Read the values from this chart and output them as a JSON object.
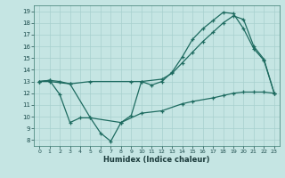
{
  "xlabel": "Humidex (Indice chaleur)",
  "bg_color": "#c5e5e3",
  "grid_color": "#a8d0ce",
  "line_color": "#1e6b60",
  "xlim": [
    -0.5,
    23.5
  ],
  "ylim": [
    7.5,
    19.5
  ],
  "xticks": [
    0,
    1,
    2,
    3,
    4,
    5,
    6,
    7,
    8,
    9,
    10,
    11,
    12,
    13,
    14,
    15,
    16,
    17,
    18,
    19,
    20,
    21,
    22,
    23
  ],
  "yticks": [
    8,
    9,
    10,
    11,
    12,
    13,
    14,
    15,
    16,
    17,
    18,
    19
  ],
  "line1_x": [
    0,
    1,
    2,
    3,
    4,
    5,
    6,
    7,
    8,
    9,
    10,
    11,
    12,
    13,
    14,
    15,
    16,
    17,
    18,
    19,
    20,
    21,
    22,
    23
  ],
  "line1_y": [
    13,
    13.1,
    11.9,
    9.5,
    9.9,
    9.9,
    8.6,
    7.9,
    9.5,
    10.1,
    13.0,
    12.7,
    13.0,
    13.8,
    15.1,
    16.6,
    17.5,
    18.2,
    18.9,
    18.8,
    17.5,
    15.8,
    14.8,
    12.0
  ],
  "line2_x": [
    0,
    1,
    2,
    3,
    5,
    9,
    10,
    12,
    13,
    14,
    15,
    16,
    17,
    18,
    19,
    20,
    21,
    22,
    23
  ],
  "line2_y": [
    13,
    13.1,
    13.0,
    12.8,
    13.0,
    13.0,
    13.0,
    13.2,
    13.7,
    14.6,
    15.5,
    16.4,
    17.2,
    18.0,
    18.6,
    18.3,
    16.0,
    14.9,
    12.0
  ],
  "line3_x": [
    0,
    1,
    3,
    5,
    8,
    10,
    12,
    14,
    15,
    17,
    18,
    19,
    20,
    21,
    22,
    23
  ],
  "line3_y": [
    13,
    13.0,
    12.8,
    9.9,
    9.5,
    10.3,
    10.5,
    11.1,
    11.3,
    11.6,
    11.8,
    12.0,
    12.1,
    12.1,
    12.1,
    12.0
  ]
}
